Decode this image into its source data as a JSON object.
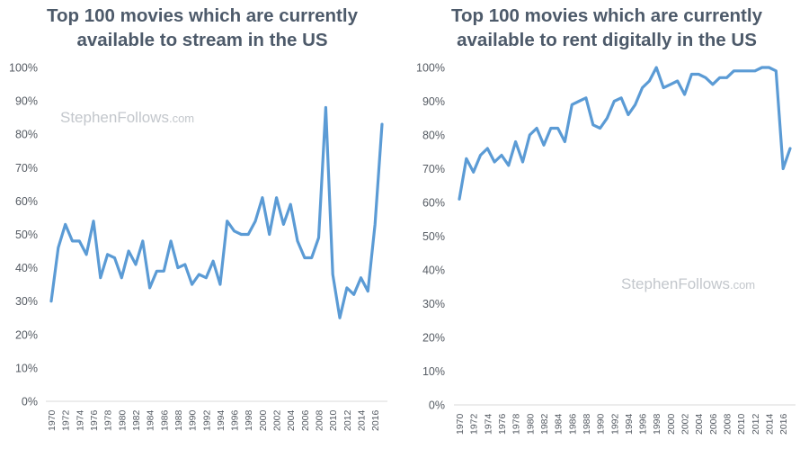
{
  "chart_data": [
    {
      "type": "line",
      "title_lines": [
        "Top 100 movies which are currently",
        "available to stream in the US"
      ],
      "watermark": {
        "main": "StephenFollows",
        "suffix": ".com"
      },
      "xlabel": "",
      "ylabel": "",
      "ylim": [
        0,
        100
      ],
      "y_ticks": [
        "0%",
        "10%",
        "20%",
        "30%",
        "40%",
        "50%",
        "60%",
        "70%",
        "80%",
        "90%",
        "100%"
      ],
      "x_tick_labels": [
        "1970",
        "1972",
        "1974",
        "1976",
        "1978",
        "1980",
        "1982",
        "1984",
        "1986",
        "1988",
        "1990",
        "1992",
        "1994",
        "1996",
        "1998",
        "2000",
        "2002",
        "2004",
        "2006",
        "2008",
        "2010",
        "2012",
        "2014",
        "2016"
      ],
      "x": [
        1970,
        1971,
        1972,
        1973,
        1974,
        1975,
        1976,
        1977,
        1978,
        1979,
        1980,
        1981,
        1982,
        1983,
        1984,
        1985,
        1986,
        1987,
        1988,
        1989,
        1990,
        1991,
        1992,
        1993,
        1994,
        1995,
        1996,
        1997,
        1998,
        1999,
        2000,
        2001,
        2002,
        2003,
        2004,
        2005,
        2006,
        2007,
        2008,
        2009,
        2010,
        2011,
        2012,
        2013,
        2014,
        2015,
        2016,
        2017
      ],
      "values": [
        30,
        46,
        53,
        48,
        48,
        44,
        54,
        37,
        44,
        43,
        37,
        45,
        41,
        48,
        34,
        39,
        39,
        48,
        40,
        41,
        35,
        38,
        37,
        42,
        35,
        54,
        51,
        50,
        50,
        54,
        61,
        50,
        61,
        53,
        59,
        48,
        43,
        43,
        49,
        88,
        38,
        25,
        34,
        32,
        37,
        33,
        53,
        83
      ],
      "color": "#5b9bd5"
    },
    {
      "type": "line",
      "title_lines": [
        "Top 100 movies which are currently",
        "available to rent digitally in the US"
      ],
      "watermark": {
        "main": "StephenFollows",
        "suffix": ".com"
      },
      "xlabel": "",
      "ylabel": "",
      "ylim": [
        0,
        100
      ],
      "y_ticks": [
        "0%",
        "10%",
        "20%",
        "30%",
        "40%",
        "50%",
        "60%",
        "70%",
        "80%",
        "90%",
        "100%"
      ],
      "x_tick_labels": [
        "1970",
        "1972",
        "1974",
        "1976",
        "1978",
        "1980",
        "1982",
        "1984",
        "1986",
        "1988",
        "1990",
        "1992",
        "1994",
        "1996",
        "1998",
        "2000",
        "2002",
        "2004",
        "2006",
        "2008",
        "2010",
        "2012",
        "2014",
        "2016"
      ],
      "x": [
        1970,
        1971,
        1972,
        1973,
        1974,
        1975,
        1976,
        1977,
        1978,
        1979,
        1980,
        1981,
        1982,
        1983,
        1984,
        1985,
        1986,
        1987,
        1988,
        1989,
        1990,
        1991,
        1992,
        1993,
        1994,
        1995,
        1996,
        1997,
        1998,
        1999,
        2000,
        2001,
        2002,
        2003,
        2004,
        2005,
        2006,
        2007,
        2008,
        2009,
        2010,
        2011,
        2012,
        2013,
        2014,
        2015,
        2016,
        2017
      ],
      "values": [
        61,
        73,
        69,
        74,
        76,
        72,
        74,
        71,
        78,
        72,
        80,
        82,
        77,
        82,
        82,
        78,
        89,
        90,
        91,
        83,
        82,
        85,
        90,
        91,
        86,
        89,
        94,
        96,
        100,
        94,
        95,
        96,
        92,
        98,
        98,
        97,
        95,
        97,
        97,
        99,
        99,
        99,
        99,
        100,
        100,
        99,
        70,
        76
      ],
      "color": "#5b9bd5"
    }
  ]
}
